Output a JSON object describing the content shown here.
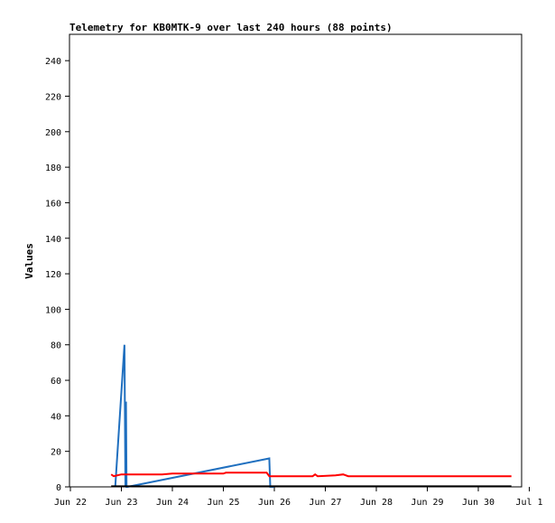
{
  "chart_data": {
    "type": "line",
    "title": "Telemetry for KB0MTK-9 over last 240 hours (88 points)",
    "xlabel": "",
    "ylabel": "Values",
    "x_ticks": [
      "Jun 22",
      "Jun 23",
      "Jun 24",
      "Jun 25",
      "Jun 26",
      "Jun 27",
      "Jun 28",
      "Jun 29",
      "Jun 30",
      "Jul 1"
    ],
    "xlim": [
      0,
      9
    ],
    "ylim": [
      0,
      255
    ],
    "y_ticks": [
      0,
      20,
      40,
      60,
      80,
      100,
      120,
      140,
      160,
      180,
      200,
      220,
      240
    ],
    "grid": false,
    "legend": "none",
    "series": [
      {
        "color": "#1f6fbf",
        "points": [
          [
            0.88,
            0
          ],
          [
            1.06,
            80
          ],
          [
            1.08,
            0
          ],
          [
            1.09,
            48
          ],
          [
            1.1,
            0
          ],
          [
            1.12,
            0
          ],
          [
            3.9,
            16
          ],
          [
            3.92,
            0
          ],
          [
            4.0,
            0
          ]
        ]
      },
      {
        "color": "#ff0000",
        "points": [
          [
            0.8,
            7
          ],
          [
            0.85,
            6
          ],
          [
            1.0,
            7
          ],
          [
            1.8,
            7
          ],
          [
            2.0,
            7.5
          ],
          [
            3.0,
            7.5
          ],
          [
            3.05,
            8
          ],
          [
            3.85,
            8
          ],
          [
            3.9,
            6
          ],
          [
            4.75,
            6
          ],
          [
            4.8,
            7
          ],
          [
            4.85,
            6
          ],
          [
            5.2,
            6.5
          ],
          [
            5.35,
            7
          ],
          [
            5.45,
            6
          ],
          [
            8.65,
            6
          ]
        ]
      },
      {
        "color": "#000000",
        "points": [
          [
            0.8,
            0.3
          ],
          [
            8.65,
            0.3
          ]
        ]
      }
    ]
  }
}
